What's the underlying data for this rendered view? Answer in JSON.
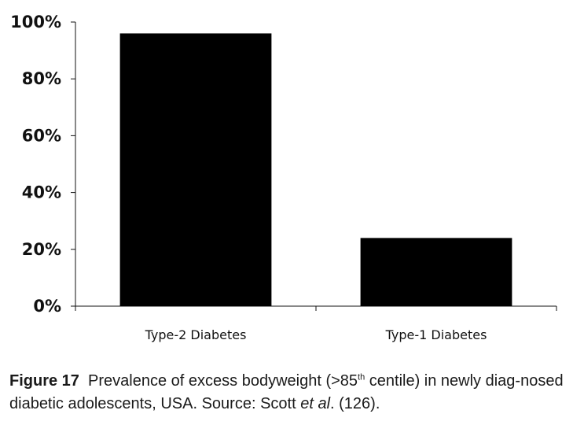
{
  "chart_data": {
    "type": "bar",
    "categories": [
      "Type-2 Diabetes",
      "Type-1 Diabetes"
    ],
    "values": [
      96,
      24
    ],
    "ylim": [
      0,
      100
    ],
    "yticks": [
      "0%",
      "20%",
      "40%",
      "60%",
      "80%",
      "100%"
    ],
    "ytick_values": [
      0,
      20,
      40,
      60,
      80,
      100
    ],
    "bar_color": "#000000",
    "grid": false
  },
  "caption": {
    "figure_label": "Figure 17",
    "text_before_sup": "Prevalence of excess bodyweight (>85",
    "sup": "th",
    "text_after_sup": " centile) in newly diag-nosed diabetic adolescents, USA. Source: Scott ",
    "italic": "et al",
    "text_end": ". (126)."
  }
}
